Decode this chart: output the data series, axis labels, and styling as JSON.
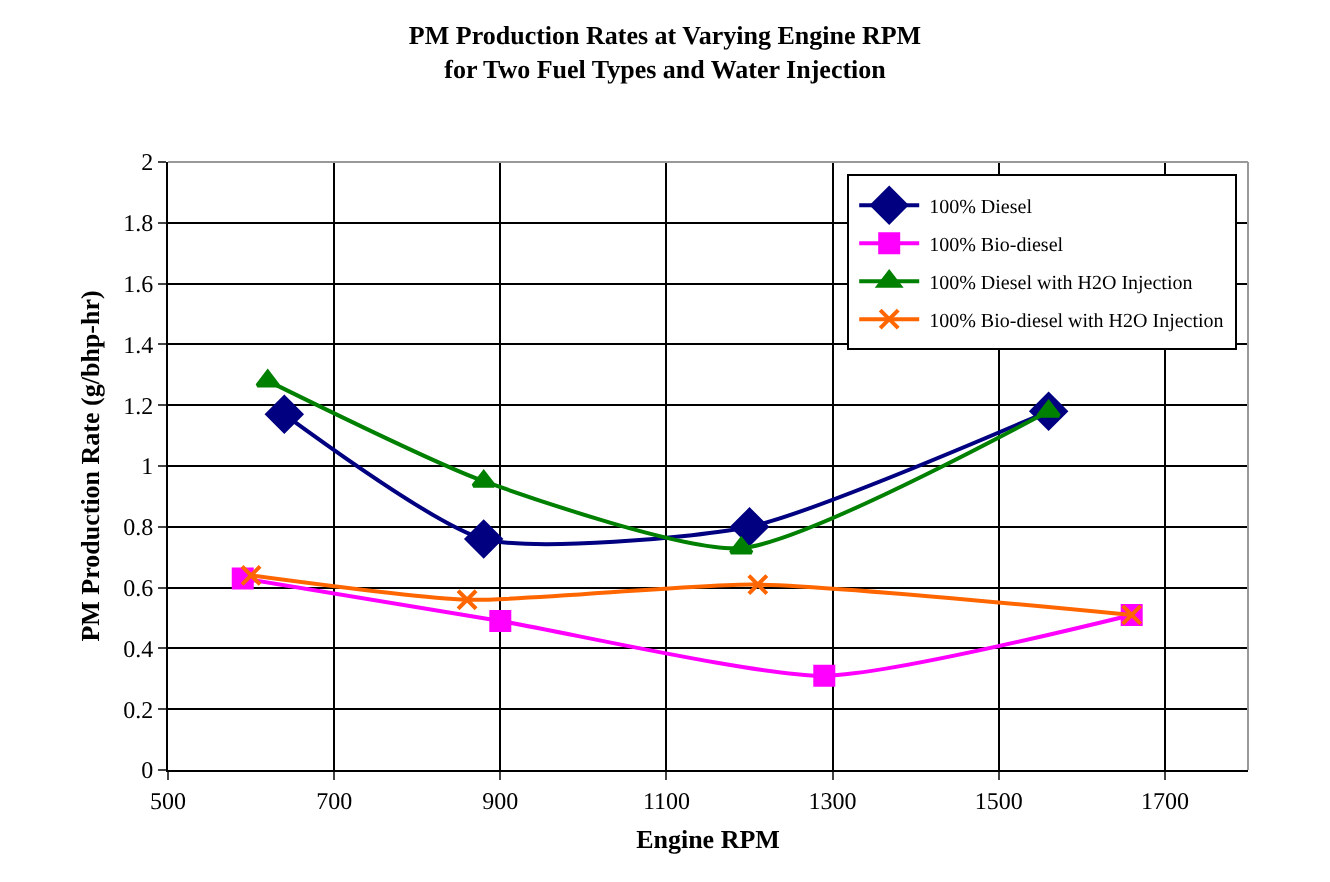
{
  "chart_data": {
    "type": "line",
    "title": "PM Production Rates at Varying Engine RPM\nfor Two Fuel Types and Water Injection",
    "xlabel": "Engine RPM",
    "ylabel": "PM Production Rate (g/bhp-hr)",
    "xlim": [
      500,
      1800
    ],
    "xticks": [
      500,
      700,
      900,
      1100,
      1300,
      1500,
      1700
    ],
    "ylim": [
      0,
      2
    ],
    "yticks": [
      0,
      0.2,
      0.4,
      0.6,
      0.8,
      1,
      1.2,
      1.4,
      1.6,
      1.8,
      2
    ],
    "grid": true,
    "legend": "top right",
    "series": [
      {
        "name": "100% Diesel",
        "color": "#000080",
        "marker": "diamond",
        "x": [
          640,
          880,
          1200,
          1560
        ],
        "values": [
          1.17,
          0.76,
          0.8,
          1.18
        ]
      },
      {
        "name": "100% Bio-diesel",
        "color": "#ff00ff",
        "marker": "square",
        "x": [
          590,
          900,
          1290,
          1660
        ],
        "values": [
          0.63,
          0.49,
          0.31,
          0.51
        ]
      },
      {
        "name": "100% Diesel with H2O Injection",
        "color": "#008000",
        "marker": "triangle",
        "x": [
          620,
          880,
          1190,
          1560
        ],
        "values": [
          1.28,
          0.95,
          0.73,
          1.18
        ]
      },
      {
        "name": "100% Bio-diesel with H2O Injection",
        "color": "#ff6600",
        "marker": "cross",
        "x": [
          600,
          860,
          1210,
          1660
        ],
        "values": [
          0.64,
          0.56,
          0.61,
          0.51
        ]
      }
    ]
  }
}
